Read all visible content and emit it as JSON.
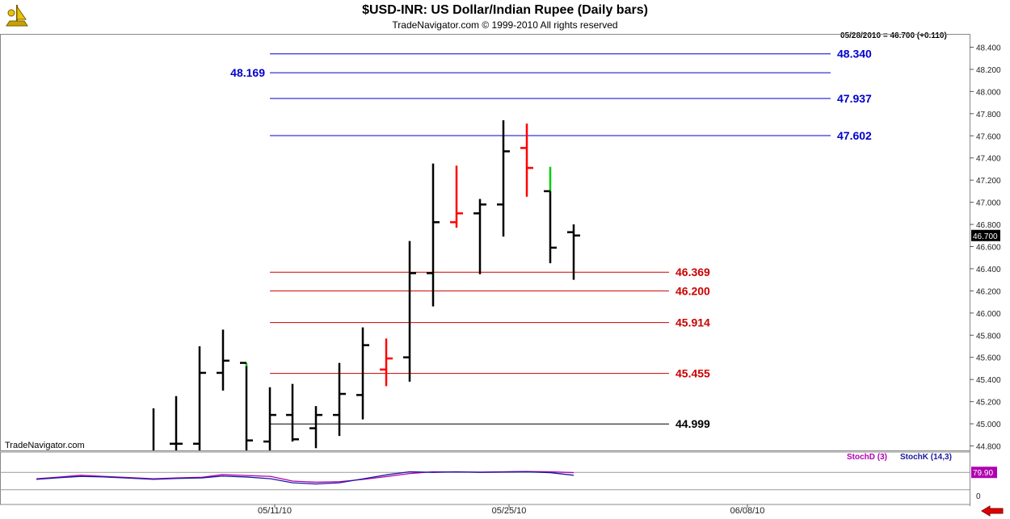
{
  "header": {
    "title": "$USD-INR:  US Dollar/Indian Rupee  (Daily bars)",
    "subtitle": "TradeNavigator.com © 1999-2010 All rights reserved"
  },
  "watermark": "TradeNavigator.com",
  "last_price_note": "05/28/2010 = 46.700 (+0.110)",
  "current_price_label": "46.700",
  "colors": {
    "up_bar": "#000000",
    "down_bar": "#ff0000",
    "green_bar": "#00cc00",
    "blue_level": "#0000cc",
    "red_level": "#cc0000",
    "stoch_d": "#b000b0",
    "stoch_k": "#1a1aa0"
  },
  "icons": {
    "logo": "sextant-logo-icon",
    "nav": "left-arrow-icon"
  },
  "chart_data": [
    {
      "type": "ohlc",
      "title": "$USD-INR:  US Dollar/Indian Rupee  (Daily bars)",
      "ylim": [
        44.76,
        48.52
      ],
      "y_ticks": [
        "48.400",
        "48.200",
        "48.000",
        "47.800",
        "47.600",
        "47.400",
        "47.200",
        "47.000",
        "46.800",
        "46.600",
        "46.400",
        "46.200",
        "46.000",
        "45.800",
        "45.600",
        "45.400",
        "45.200",
        "45.000",
        "44.800"
      ],
      "x_ticks": [
        "05/11/10",
        "05/25/10",
        "06/08/10"
      ],
      "bars": [
        {
          "x": 190,
          "o": null,
          "h": 45.14,
          "l": 44.76,
          "c": null,
          "color": "black"
        },
        {
          "x": 218,
          "o": 44.82,
          "h": 45.25,
          "l": 44.76,
          "c": 44.82,
          "color": "black"
        },
        {
          "x": 247,
          "o": 44.82,
          "h": 45.7,
          "l": 44.76,
          "c": 45.46,
          "color": "black"
        },
        {
          "x": 276,
          "o": 45.46,
          "h": 45.85,
          "l": 45.3,
          "c": 45.57,
          "color": "black"
        },
        {
          "x": 305,
          "o": 45.55,
          "h": 45.55,
          "l": 44.76,
          "c": 44.85,
          "color": "black",
          "hi_color": "green"
        },
        {
          "x": 334,
          "o": 44.84,
          "h": 45.33,
          "l": 44.76,
          "c": 45.08,
          "color": "black"
        },
        {
          "x": 362,
          "o": 45.08,
          "h": 45.36,
          "l": 44.84,
          "c": 44.86,
          "color": "black"
        },
        {
          "x": 391,
          "o": 44.96,
          "h": 45.16,
          "l": 44.78,
          "c": 45.08,
          "color": "black"
        },
        {
          "x": 420,
          "o": 45.08,
          "h": 45.55,
          "l": 44.89,
          "c": 45.27,
          "color": "black"
        },
        {
          "x": 449,
          "o": 45.26,
          "h": 45.87,
          "l": 45.04,
          "c": 45.71,
          "color": "black"
        },
        {
          "x": 478,
          "o": 45.49,
          "h": 45.77,
          "l": 45.34,
          "c": 45.59,
          "color": "red"
        },
        {
          "x": 507,
          "o": 45.6,
          "h": 46.65,
          "l": 45.38,
          "c": 46.36,
          "color": "black"
        },
        {
          "x": 536,
          "o": 46.36,
          "h": 47.35,
          "l": 46.06,
          "c": 46.82,
          "color": "black"
        },
        {
          "x": 565,
          "o": 46.82,
          "h": 47.33,
          "l": 46.77,
          "c": 46.9,
          "color": "red"
        },
        {
          "x": 594,
          "o": 46.9,
          "h": 47.03,
          "l": 46.35,
          "c": 46.98,
          "color": "black"
        },
        {
          "x": 623,
          "o": 46.98,
          "h": 47.74,
          "l": 46.69,
          "c": 47.46,
          "color": "black"
        },
        {
          "x": 652,
          "o": 47.49,
          "h": 47.71,
          "l": 47.05,
          "c": 47.31,
          "color": "red"
        },
        {
          "x": 681,
          "o": 47.1,
          "h": 47.32,
          "l": 46.45,
          "c": 46.59,
          "color": "black",
          "hi_color": "green",
          "hi_split": 47.1
        },
        {
          "x": 710,
          "o": 46.73,
          "h": 46.8,
          "l": 46.3,
          "c": 46.7,
          "color": "black"
        }
      ],
      "levels": [
        {
          "value": 48.34,
          "label": "48.340",
          "color": "blue"
        },
        {
          "value": 48.169,
          "label": "48.169",
          "color": "blue",
          "label_side": "left"
        },
        {
          "value": 47.937,
          "label": "47.937",
          "color": "blue"
        },
        {
          "value": 47.602,
          "label": "47.602",
          "color": "blue"
        },
        {
          "value": 46.369,
          "label": "46.369",
          "color": "red"
        },
        {
          "value": 46.2,
          "label": "46.200",
          "color": "red"
        },
        {
          "value": 45.914,
          "label": "45.914",
          "color": "red"
        },
        {
          "value": 45.455,
          "label": "45.455",
          "color": "red"
        },
        {
          "value": 44.999,
          "label": "44.999",
          "color": "black"
        }
      ]
    },
    {
      "type": "line",
      "title": "",
      "ylim": [
        0,
        100
      ],
      "y_ticks": [
        "0"
      ],
      "current_value_label": "79.90",
      "series": [
        {
          "name": "StochD (3)",
          "x": [
            45,
            75,
            100,
            130,
            160,
            190,
            220,
            250,
            275,
            305,
            335,
            362,
            391,
            420,
            450,
            480,
            507,
            536,
            565,
            594,
            623,
            652,
            681,
            710
          ],
          "values": [
            58,
            64,
            70,
            66,
            62,
            58,
            61,
            63,
            72,
            69,
            66,
            50,
            46,
            48,
            56,
            66,
            76,
            82,
            81,
            81,
            82,
            83,
            82,
            79
          ]
        },
        {
          "name": "StochK (14,3)",
          "x": [
            45,
            75,
            100,
            130,
            160,
            190,
            220,
            250,
            275,
            305,
            335,
            362,
            391,
            420,
            450,
            480,
            507,
            536,
            565,
            594,
            623,
            652,
            681,
            710
          ],
          "values": [
            56,
            62,
            66,
            64,
            60,
            56,
            59,
            61,
            67,
            64,
            58,
            44,
            40,
            44,
            58,
            72,
            82,
            80,
            82,
            80,
            81,
            82,
            79,
            70
          ]
        }
      ]
    }
  ]
}
